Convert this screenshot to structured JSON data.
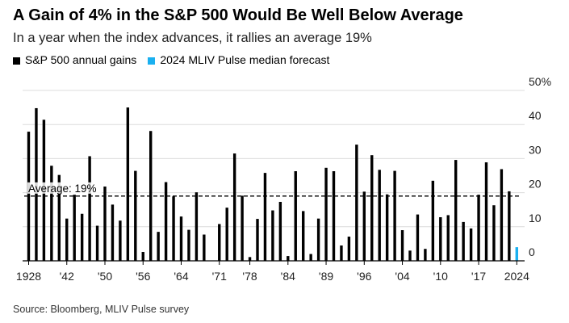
{
  "title": "A Gain of 4% in the S&P 500 Would Be Well Below Average",
  "subtitle": "In a year when the index advances, it rallies an average 19%",
  "source": "Source: Bloomberg, MLIV Pulse survey",
  "chart_data": {
    "type": "bar",
    "legend": [
      {
        "label": "S&P 500 annual gains",
        "color": "#000000"
      },
      {
        "label": "2024 MLIV Pulse median forecast",
        "color": "#1ab0f0"
      }
    ],
    "categories": [
      1928,
      1933,
      1935,
      1936,
      1938,
      1942,
      1943,
      1944,
      1945,
      1949,
      1950,
      1951,
      1952,
      1954,
      1955,
      1956,
      1958,
      1959,
      1961,
      1963,
      1964,
      1965,
      1967,
      1968,
      1970,
      1971,
      1972,
      1975,
      1976,
      1978,
      1979,
      1980,
      1982,
      1983,
      1984,
      1985,
      1986,
      1987,
      1988,
      1989,
      1991,
      1992,
      1993,
      1995,
      1996,
      1997,
      1998,
      1999,
      2003,
      2004,
      2005,
      2006,
      2007,
      2009,
      2010,
      2012,
      2013,
      2014,
      2016,
      2017,
      2019,
      2020,
      2021,
      2023,
      2024
    ],
    "values": [
      37.9,
      44.8,
      41.4,
      27.9,
      25.2,
      12.4,
      19.4,
      13.8,
      30.7,
      10.3,
      21.8,
      16.5,
      11.8,
      45.0,
      26.4,
      2.6,
      38.1,
      8.5,
      23.1,
      18.9,
      13.0,
      9.1,
      20.1,
      7.7,
      0.1,
      10.8,
      15.6,
      31.5,
      19.1,
      1.1,
      12.3,
      25.8,
      14.8,
      17.3,
      1.4,
      26.3,
      14.6,
      2.0,
      12.4,
      27.3,
      26.3,
      4.5,
      7.1,
      34.1,
      20.3,
      31.0,
      26.7,
      19.5,
      26.4,
      9.0,
      3.0,
      13.6,
      3.5,
      23.5,
      12.8,
      13.4,
      29.6,
      11.4,
      9.5,
      19.4,
      28.9,
      16.3,
      26.9,
      20.4,
      4.0
    ],
    "forecast_category": 2024,
    "x_tick_labels": [
      {
        "year": 1928,
        "label": "1928"
      },
      {
        "year": 1942,
        "label": "'42"
      },
      {
        "year": 1950,
        "label": "'50"
      },
      {
        "year": 1956,
        "label": "'56"
      },
      {
        "year": 1964,
        "label": "'64"
      },
      {
        "year": 1971,
        "label": "'71"
      },
      {
        "year": 1978,
        "label": "'78"
      },
      {
        "year": 1984,
        "label": "'84"
      },
      {
        "year": 1989,
        "label": "'89"
      },
      {
        "year": 1996,
        "label": "'96"
      },
      {
        "year": 2004,
        "label": "'04"
      },
      {
        "year": 2010,
        "label": "'10"
      },
      {
        "year": 2017,
        "label": "'17"
      },
      {
        "year": 2024,
        "label": "2024"
      }
    ],
    "y_ticks": [
      0,
      10,
      20,
      30,
      40,
      50
    ],
    "y_tick_labels": [
      "0",
      "10",
      "20",
      "30",
      "40",
      "50%"
    ],
    "ylim": [
      0,
      50
    ],
    "average": 19,
    "average_label": "Average: 19%",
    "grid": true,
    "xlabel": "",
    "ylabel": ""
  }
}
